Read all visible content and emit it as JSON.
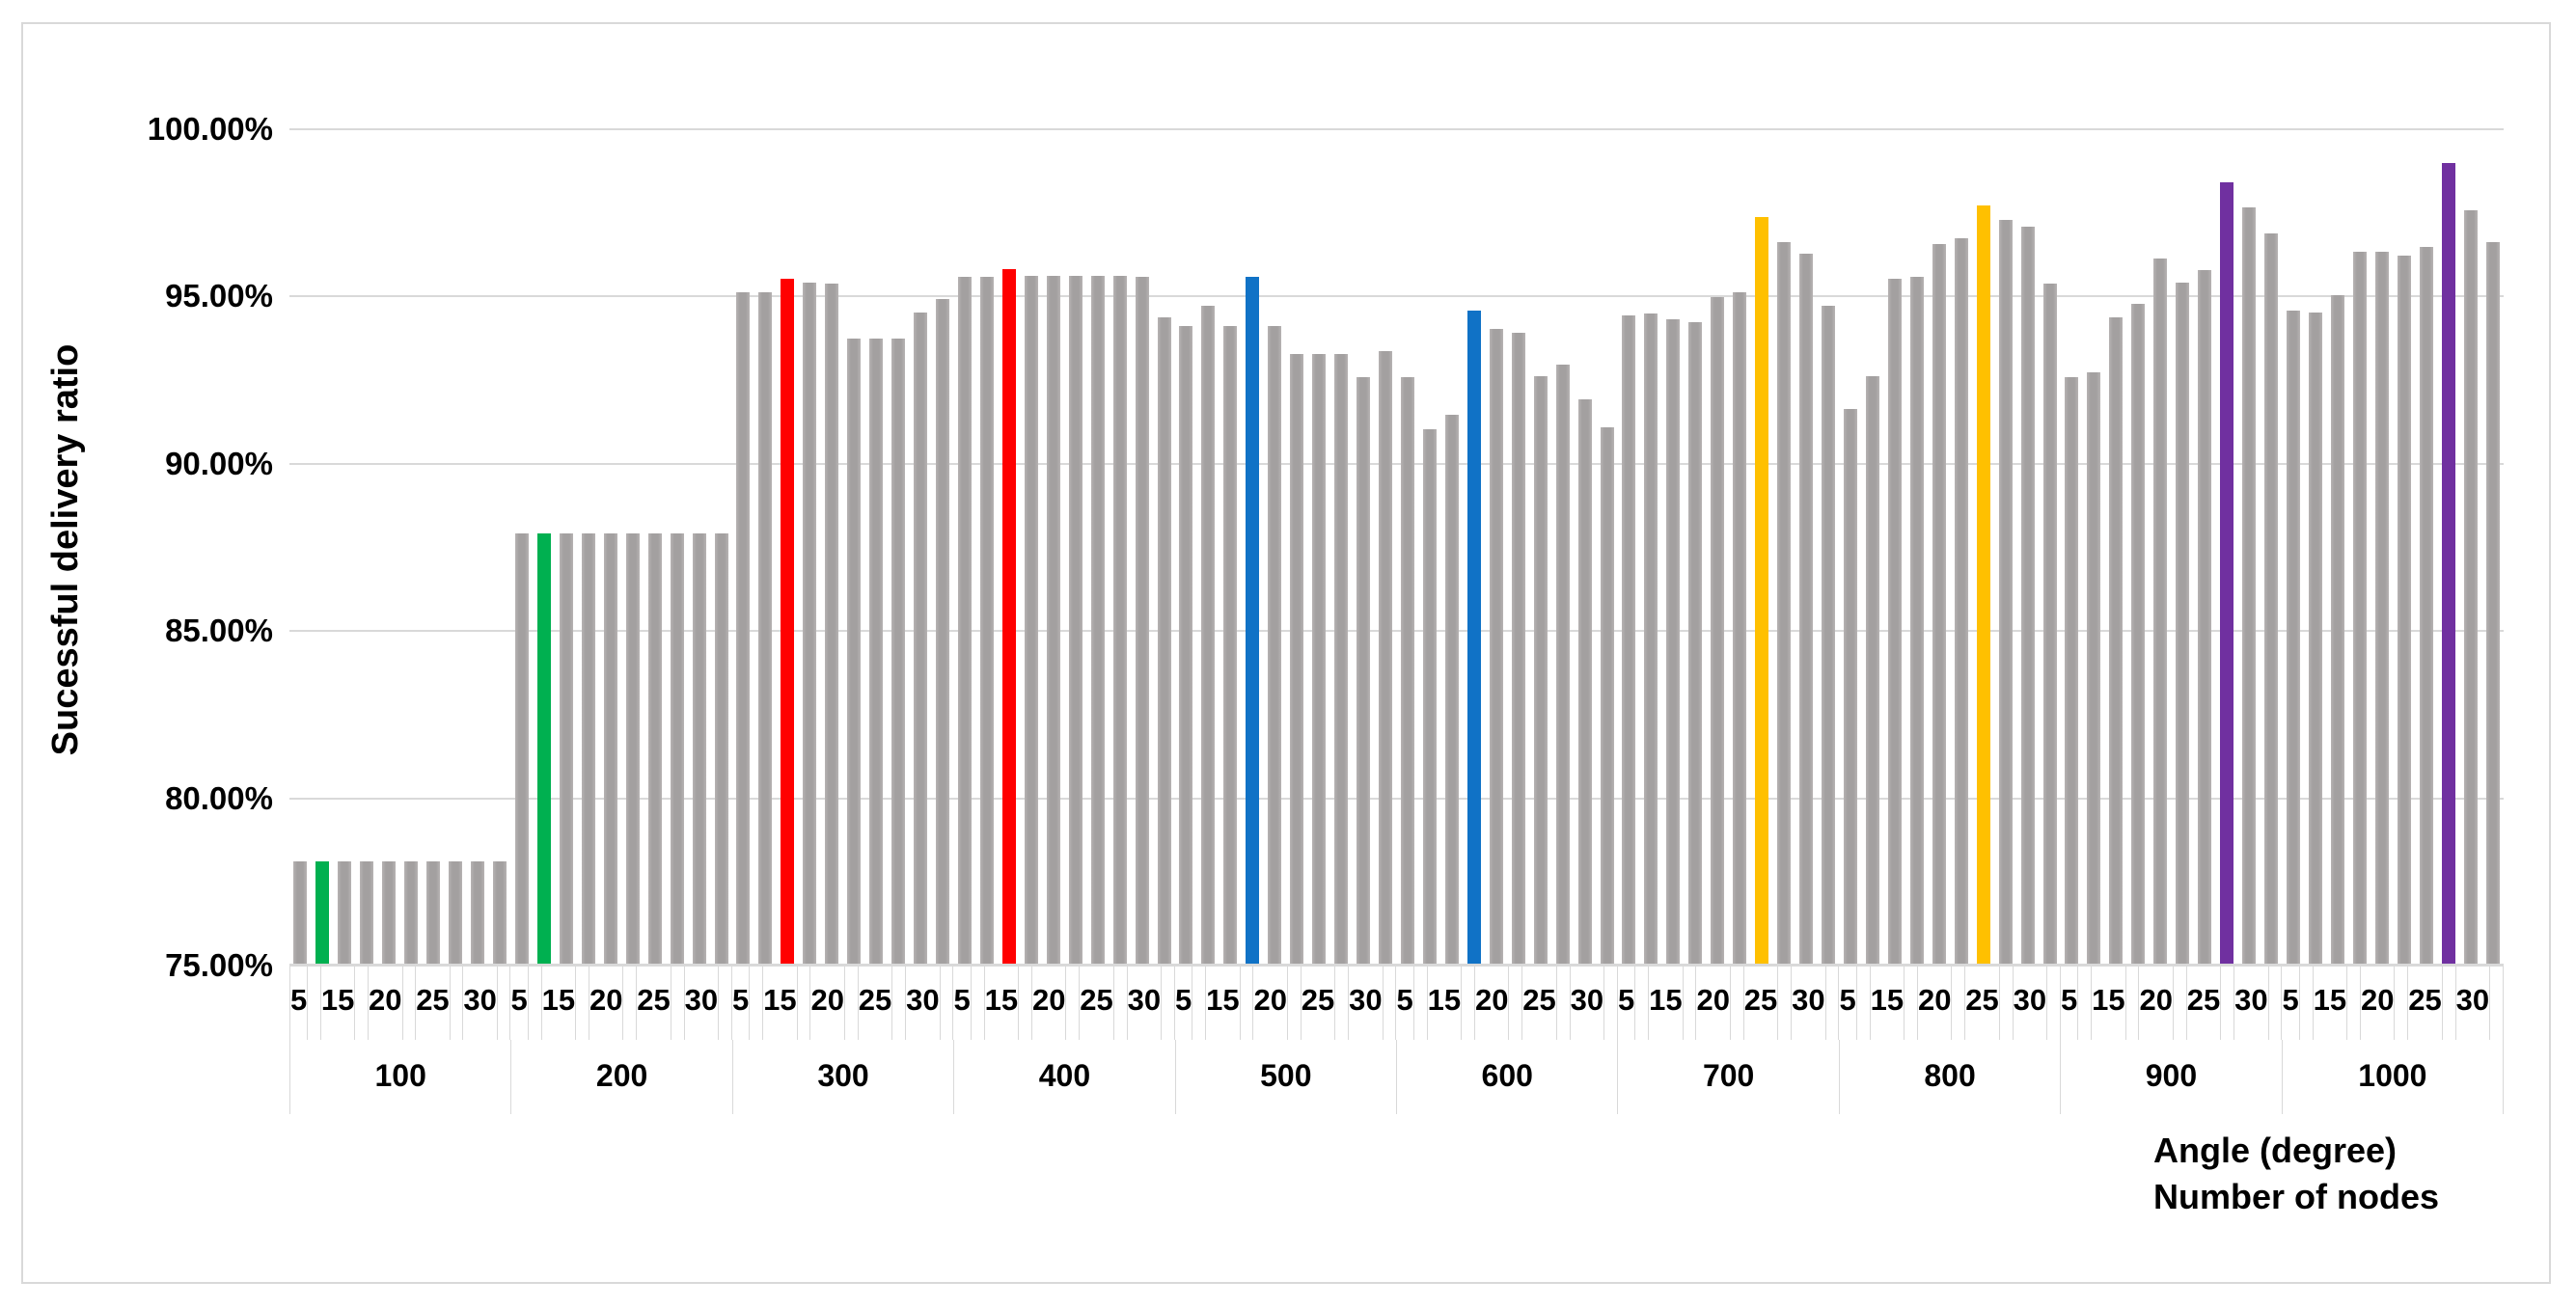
{
  "chart_data": {
    "type": "bar",
    "title": "",
    "ylabel": "Sucessful delivery ratio",
    "xlabel_line1": "Angle (degree)",
    "xlabel_line2": "Number of nodes",
    "y_axis": {
      "min": 75,
      "max": 100,
      "tick_step": 5,
      "tick_labels": [
        "100.00%",
        "95.00%",
        "90.00%",
        "85.00%",
        "80.00%",
        "75.00%"
      ],
      "grid": true
    },
    "angle_tick_labels": [
      "5",
      "15",
      "20",
      "25",
      "30"
    ],
    "angle_tick_cell_positions": [
      0,
      2,
      4,
      6,
      8
    ],
    "bars_per_group": 10,
    "default_bar_color": "#A6A6A6",
    "highlight_colors": {
      "green": "#00B050",
      "red": "#FF0000",
      "blue": "#1072C6",
      "yellow": "#FFC000",
      "purple": "#7030A0"
    },
    "groups": [
      {
        "label": "100",
        "highlight_index": 1,
        "highlight_color": "#00B050",
        "values": [
          78.1,
          78.1,
          78.1,
          78.1,
          78.1,
          78.1,
          78.1,
          78.1,
          78.1,
          78.1
        ]
      },
      {
        "label": "200",
        "highlight_index": 1,
        "highlight_color": "#00B050",
        "values": [
          87.9,
          87.9,
          87.9,
          87.9,
          87.9,
          87.9,
          87.9,
          87.9,
          87.9,
          87.9
        ]
      },
      {
        "label": "300",
        "highlight_index": 2,
        "highlight_color": "#FF0000",
        "values": [
          95.1,
          95.1,
          95.5,
          95.4,
          95.35,
          93.7,
          93.7,
          93.7,
          94.5,
          94.9
        ]
      },
      {
        "label": "400",
        "highlight_index": 2,
        "highlight_color": "#FF0000",
        "values": [
          95.55,
          95.55,
          95.8,
          95.6,
          95.6,
          95.6,
          95.6,
          95.6,
          95.55,
          94.35
        ]
      },
      {
        "label": "500",
        "highlight_index": 3,
        "highlight_color": "#1072C6",
        "values": [
          94.1,
          94.7,
          94.1,
          95.55,
          94.1,
          93.25,
          93.25,
          93.25,
          92.55,
          93.35
        ]
      },
      {
        "label": "600",
        "highlight_index": 3,
        "highlight_color": "#1072C6",
        "values": [
          92.55,
          91.0,
          91.45,
          94.55,
          94.0,
          93.9,
          92.6,
          92.95,
          91.9,
          91.05
        ]
      },
      {
        "label": "700",
        "highlight_index": 6,
        "highlight_color": "#FFC000",
        "values": [
          94.4,
          94.45,
          94.3,
          94.2,
          94.95,
          95.1,
          97.35,
          96.6,
          96.25,
          94.7
        ]
      },
      {
        "label": "800",
        "highlight_index": 6,
        "highlight_color": "#FFC000",
        "values": [
          91.6,
          92.6,
          95.5,
          95.55,
          96.55,
          96.7,
          97.7,
          97.25,
          97.05,
          95.35
        ]
      },
      {
        "label": "900",
        "highlight_index": 7,
        "highlight_color": "#7030A0",
        "values": [
          92.55,
          92.7,
          94.35,
          94.75,
          96.1,
          95.4,
          95.75,
          98.4,
          97.65,
          96.85
        ]
      },
      {
        "label": "1000",
        "highlight_index": 7,
        "highlight_color": "#7030A0",
        "values": [
          94.55,
          94.5,
          95.0,
          96.3,
          96.3,
          96.2,
          96.45,
          98.95,
          97.55,
          96.6
        ]
      }
    ],
    "layout": {
      "legend": "none",
      "grid_color": "#D9D9D9",
      "text_color": "#000000"
    }
  }
}
